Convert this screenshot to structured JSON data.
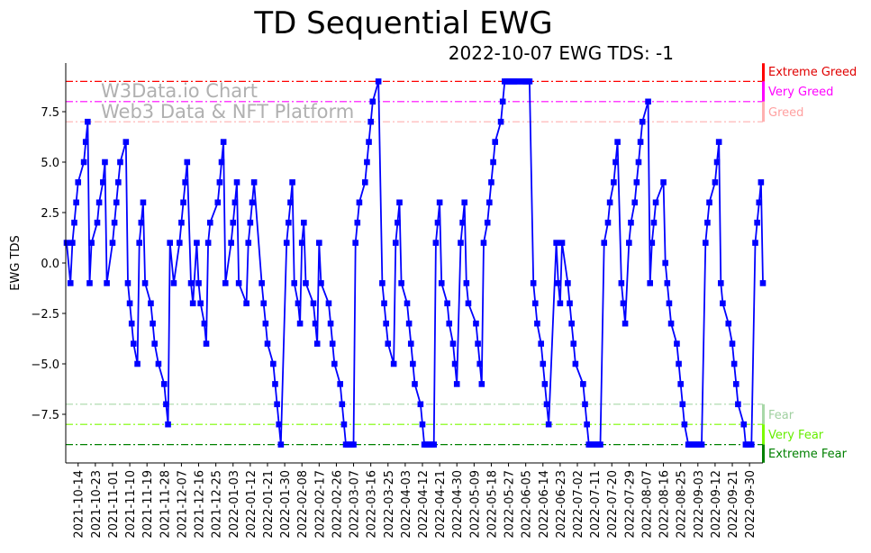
{
  "chart_data": {
    "type": "line",
    "title": "TD Sequential EWG",
    "subtitle": "2022-10-07 EWG TDS: -1",
    "xlabel": "",
    "ylabel": "EWG TDS",
    "x_unit": "days since 2021-10-08",
    "start_date": "2021-10-08",
    "xlim_days": [
      0,
      364
    ],
    "ylim": [
      -9.9,
      9.9
    ],
    "grid": false,
    "watermark": [
      "W3Data.io Chart",
      "Web3 Data & NFT Platform"
    ],
    "y_ticks": [
      {
        "value": 7.5,
        "label": "7.5"
      },
      {
        "value": 5,
        "label": "5.0"
      },
      {
        "value": 2.5,
        "label": "2.5"
      },
      {
        "value": 0,
        "label": "0.0"
      },
      {
        "value": -2.5,
        "label": "−2.5"
      },
      {
        "value": -5,
        "label": "−5.0"
      },
      {
        "value": -7.5,
        "label": "−7.5"
      }
    ],
    "x_tick_first_day": 6,
    "x_tick_step_days": 9,
    "x_tick_labels": [
      "2021-10-14",
      "2021-10-23",
      "2021-11-01",
      "2021-11-10",
      "2021-11-19",
      "2021-11-28",
      "2021-12-07",
      "2021-12-16",
      "2021-12-25",
      "2022-01-03",
      "2022-01-12",
      "2022-01-21",
      "2022-01-30",
      "2022-02-08",
      "2022-02-17",
      "2022-02-26",
      "2022-03-07",
      "2022-03-16",
      "2022-03-25",
      "2022-04-03",
      "2022-04-12",
      "2022-04-21",
      "2022-04-30",
      "2022-05-09",
      "2022-05-18",
      "2022-05-27",
      "2022-06-05",
      "2022-06-14",
      "2022-06-23",
      "2022-07-02",
      "2022-07-11",
      "2022-07-20",
      "2022-07-29",
      "2022-08-07",
      "2022-08-16",
      "2022-08-25",
      "2022-09-03",
      "2022-09-12",
      "2022-09-21",
      "2022-09-30"
    ],
    "zones": [
      {
        "label": "Extreme Greed",
        "level": 9,
        "band": [
          9,
          9.9
        ],
        "color": "#ff0000",
        "text_color": "#e00000"
      },
      {
        "label": "Very Greed",
        "level": 8,
        "band": [
          8,
          9
        ],
        "color": "#ff00ff",
        "text_color": "#ff00ff"
      },
      {
        "label": "Greed",
        "level": 7,
        "band": [
          7,
          8
        ],
        "color": "#ffb0b0",
        "text_color": "#ffa0a0"
      },
      {
        "label": "Fear",
        "level": -7,
        "band": [
          -8,
          -7
        ],
        "color": "#a8d8a8",
        "text_color": "#a0d0a0"
      },
      {
        "label": "Very Fear",
        "level": -8,
        "band": [
          -9,
          -8
        ],
        "color": "#7cfc00",
        "text_color": "#66ee00"
      },
      {
        "label": "Extreme Fear",
        "level": -9,
        "band": [
          -9.9,
          -9
        ],
        "color": "#008000",
        "text_color": "#008000"
      }
    ],
    "series": [
      {
        "name": "EWG TDS",
        "color": "#0000ff",
        "points": [
          [
            0,
            1
          ],
          [
            2,
            -1
          ],
          [
            3,
            1
          ],
          [
            4,
            2
          ],
          [
            5,
            3
          ],
          [
            6,
            4
          ],
          [
            9,
            5
          ],
          [
            10,
            6
          ],
          [
            11,
            7
          ],
          [
            12,
            -1
          ],
          [
            13,
            1
          ],
          [
            16,
            2
          ],
          [
            17,
            3
          ],
          [
            19,
            4
          ],
          [
            20,
            5
          ],
          [
            21,
            -1
          ],
          [
            24,
            1
          ],
          [
            25,
            2
          ],
          [
            26,
            3
          ],
          [
            27,
            4
          ],
          [
            28,
            5
          ],
          [
            31,
            6
          ],
          [
            32,
            -1
          ],
          [
            33,
            -2
          ],
          [
            34,
            -3
          ],
          [
            35,
            -4
          ],
          [
            37,
            -5
          ],
          [
            38,
            1
          ],
          [
            39,
            2
          ],
          [
            40,
            3
          ],
          [
            41,
            -1
          ],
          [
            44,
            -2
          ],
          [
            45,
            -3
          ],
          [
            46,
            -4
          ],
          [
            48,
            -5
          ],
          [
            51,
            -6
          ],
          [
            52,
            -7
          ],
          [
            53,
            -8
          ],
          [
            54,
            1
          ],
          [
            56,
            -1
          ],
          [
            59,
            1
          ],
          [
            60,
            2
          ],
          [
            61,
            3
          ],
          [
            62,
            4
          ],
          [
            63,
            5
          ],
          [
            65,
            -1
          ],
          [
            66,
            -2
          ],
          [
            68,
            1
          ],
          [
            69,
            -1
          ],
          [
            70,
            -2
          ],
          [
            72,
            -3
          ],
          [
            73,
            -4
          ],
          [
            74,
            1
          ],
          [
            75,
            2
          ],
          [
            79,
            3
          ],
          [
            80,
            4
          ],
          [
            81,
            5
          ],
          [
            82,
            6
          ],
          [
            83,
            -1
          ],
          [
            86,
            1
          ],
          [
            87,
            2
          ],
          [
            88,
            3
          ],
          [
            89,
            4
          ],
          [
            90,
            -1
          ],
          [
            94,
            -2
          ],
          [
            95,
            1
          ],
          [
            96,
            2
          ],
          [
            97,
            3
          ],
          [
            98,
            4
          ],
          [
            102,
            -1
          ],
          [
            103,
            -2
          ],
          [
            104,
            -3
          ],
          [
            105,
            -4
          ],
          [
            108,
            -5
          ],
          [
            109,
            -6
          ],
          [
            110,
            -7
          ],
          [
            111,
            -8
          ],
          [
            112,
            -9
          ],
          [
            115,
            1
          ],
          [
            116,
            2
          ],
          [
            117,
            3
          ],
          [
            118,
            4
          ],
          [
            119,
            -1
          ],
          [
            121,
            -2
          ],
          [
            122,
            -3
          ],
          [
            123,
            1
          ],
          [
            124,
            2
          ],
          [
            125,
            -1
          ],
          [
            129,
            -2
          ],
          [
            130,
            -3
          ],
          [
            131,
            -4
          ],
          [
            132,
            1
          ],
          [
            133,
            -1
          ],
          [
            137,
            -2
          ],
          [
            138,
            -3
          ],
          [
            139,
            -4
          ],
          [
            140,
            -5
          ],
          [
            143,
            -6
          ],
          [
            144,
            -7
          ],
          [
            145,
            -8
          ],
          [
            146,
            -9
          ],
          [
            147,
            -9
          ],
          [
            148,
            -9
          ],
          [
            149,
            -9
          ],
          [
            150,
            -9
          ],
          [
            151,
            1
          ],
          [
            152,
            2
          ],
          [
            153,
            3
          ],
          [
            156,
            4
          ],
          [
            157,
            5
          ],
          [
            158,
            6
          ],
          [
            159,
            7
          ],
          [
            160,
            8
          ],
          [
            163,
            9
          ],
          [
            165,
            -1
          ],
          [
            166,
            -2
          ],
          [
            167,
            -3
          ],
          [
            168,
            -4
          ],
          [
            171,
            -5
          ],
          [
            172,
            1
          ],
          [
            173,
            2
          ],
          [
            174,
            3
          ],
          [
            175,
            -1
          ],
          [
            178,
            -2
          ],
          [
            179,
            -3
          ],
          [
            180,
            -4
          ],
          [
            181,
            -5
          ],
          [
            182,
            -6
          ],
          [
            185,
            -7
          ],
          [
            186,
            -8
          ],
          [
            187,
            -9
          ],
          [
            188,
            -9
          ],
          [
            189,
            -9
          ],
          [
            190,
            -9
          ],
          [
            191,
            -9
          ],
          [
            192,
            -9
          ],
          [
            193,
            1
          ],
          [
            194,
            2
          ],
          [
            195,
            3
          ],
          [
            196,
            -1
          ],
          [
            199,
            -2
          ],
          [
            200,
            -3
          ],
          [
            202,
            -4
          ],
          [
            203,
            -5
          ],
          [
            204,
            -6
          ],
          [
            206,
            1
          ],
          [
            207,
            2
          ],
          [
            208,
            3
          ],
          [
            209,
            -1
          ],
          [
            210,
            -2
          ],
          [
            214,
            -3
          ],
          [
            215,
            -4
          ],
          [
            216,
            -5
          ],
          [
            217,
            -6
          ],
          [
            218,
            1
          ],
          [
            220,
            2
          ],
          [
            221,
            3
          ],
          [
            222,
            4
          ],
          [
            223,
            5
          ],
          [
            224,
            6
          ],
          [
            227,
            7
          ],
          [
            228,
            8
          ],
          [
            229,
            9
          ],
          [
            230,
            9
          ],
          [
            231,
            9
          ],
          [
            232,
            9
          ],
          [
            233,
            9
          ],
          [
            234,
            9
          ],
          [
            235,
            9
          ],
          [
            236,
            9
          ],
          [
            238,
            9
          ],
          [
            239,
            9
          ],
          [
            240,
            9
          ],
          [
            241,
            9
          ],
          [
            242,
            9
          ],
          [
            244,
            -1
          ],
          [
            245,
            -2
          ],
          [
            246,
            -3
          ],
          [
            248,
            -4
          ],
          [
            249,
            -5
          ],
          [
            250,
            -6
          ],
          [
            251,
            -7
          ],
          [
            252,
            -8
          ],
          [
            256,
            1
          ],
          [
            257,
            -1
          ],
          [
            258,
            -2
          ],
          [
            259,
            1
          ],
          [
            262,
            -1
          ],
          [
            263,
            -2
          ],
          [
            264,
            -3
          ],
          [
            265,
            -4
          ],
          [
            266,
            -5
          ],
          [
            270,
            -6
          ],
          [
            271,
            -7
          ],
          [
            272,
            -8
          ],
          [
            273,
            -9
          ],
          [
            274,
            -9
          ],
          [
            275,
            -9
          ],
          [
            276,
            -9
          ],
          [
            277,
            -9
          ],
          [
            278,
            -9
          ],
          [
            279,
            -9
          ],
          [
            281,
            1
          ],
          [
            283,
            2
          ],
          [
            284,
            3
          ],
          [
            286,
            4
          ],
          [
            287,
            5
          ],
          [
            288,
            6
          ],
          [
            290,
            -1
          ],
          [
            291,
            -2
          ],
          [
            292,
            -3
          ],
          [
            294,
            1
          ],
          [
            295,
            2
          ],
          [
            297,
            3
          ],
          [
            298,
            4
          ],
          [
            299,
            5
          ],
          [
            300,
            6
          ],
          [
            301,
            7
          ],
          [
            304,
            8
          ],
          [
            305,
            -1
          ],
          [
            306,
            1
          ],
          [
            307,
            2
          ],
          [
            308,
            3
          ],
          [
            312,
            4
          ],
          [
            313,
            0
          ],
          [
            314,
            -1
          ],
          [
            315,
            -2
          ],
          [
            316,
            -3
          ],
          [
            319,
            -4
          ],
          [
            320,
            -5
          ],
          [
            321,
            -6
          ],
          [
            322,
            -7
          ],
          [
            323,
            -8
          ],
          [
            325,
            -9
          ],
          [
            326,
            -9
          ],
          [
            327,
            -9
          ],
          [
            328,
            -9
          ],
          [
            329,
            -9
          ],
          [
            330,
            -9
          ],
          [
            331,
            -9
          ],
          [
            332,
            -9
          ],
          [
            334,
            1
          ],
          [
            335,
            2
          ],
          [
            336,
            3
          ],
          [
            339,
            4
          ],
          [
            340,
            5
          ],
          [
            341,
            6
          ],
          [
            342,
            -1
          ],
          [
            343,
            -2
          ],
          [
            346,
            -3
          ],
          [
            348,
            -4
          ],
          [
            349,
            -5
          ],
          [
            350,
            -6
          ],
          [
            351,
            -7
          ],
          [
            354,
            -8
          ],
          [
            355,
            -9
          ],
          [
            356,
            -9
          ],
          [
            357,
            -9
          ],
          [
            358,
            -9
          ],
          [
            360,
            1
          ],
          [
            361,
            2
          ],
          [
            362,
            3
          ],
          [
            363,
            4
          ],
          [
            364,
            -1
          ]
        ]
      }
    ]
  }
}
